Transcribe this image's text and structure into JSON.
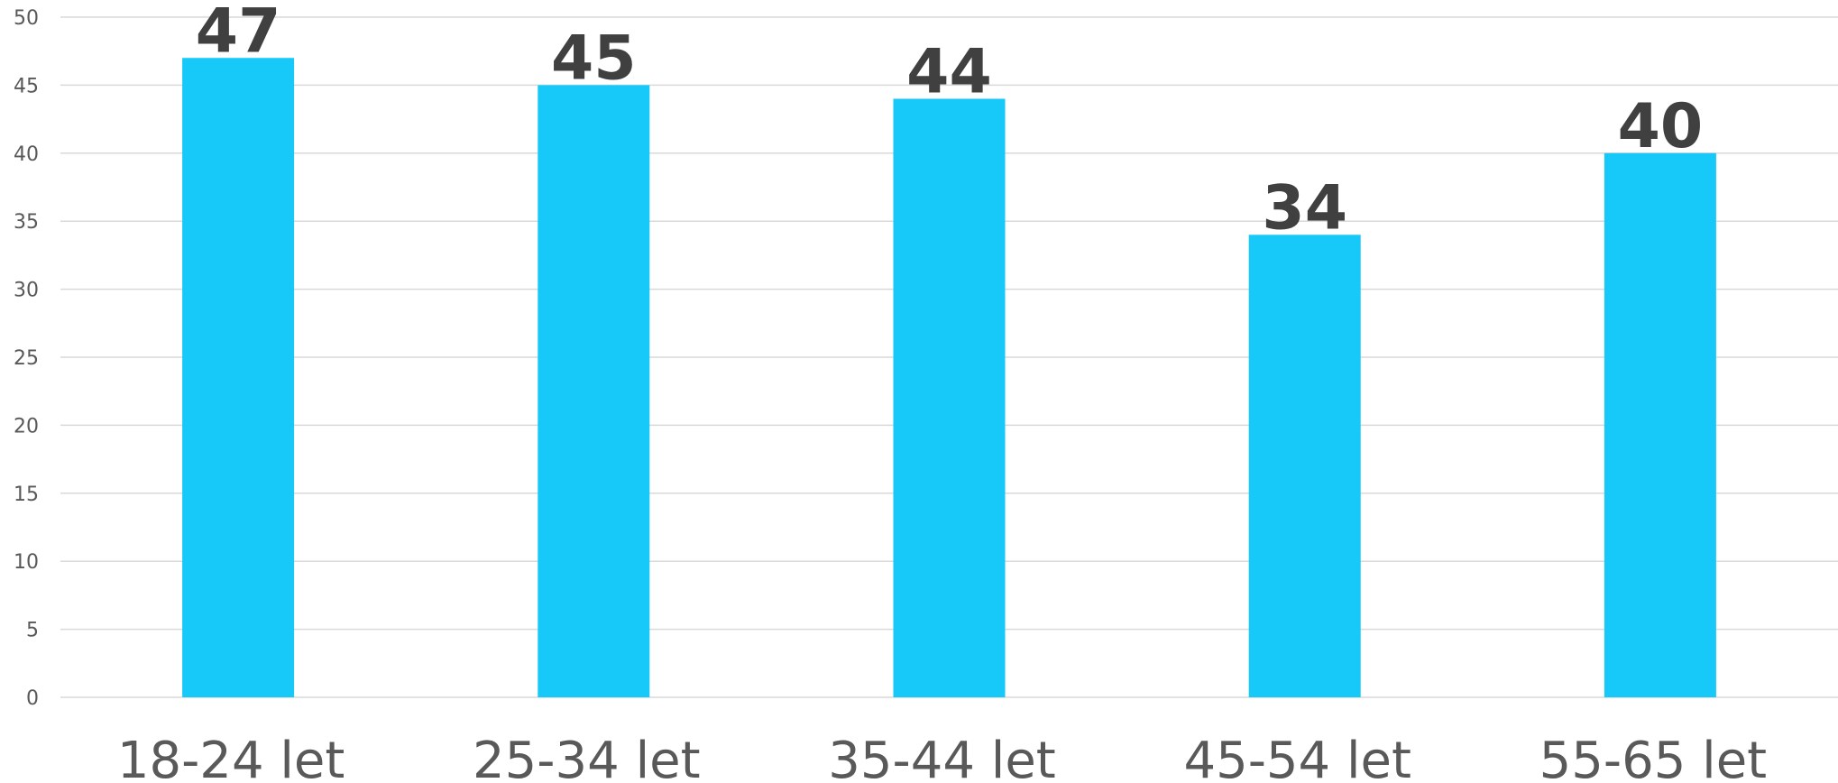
{
  "chart_data": {
    "type": "bar",
    "title": "",
    "xlabel": "",
    "ylabel": "",
    "categories": [
      "18-24 let",
      "25-34 let",
      "35-44 let",
      "45-54 let",
      "55-65 let"
    ],
    "values": [
      47,
      45,
      44,
      34,
      40
    ],
    "data_labels": [
      "47",
      "45",
      "44",
      "34",
      "40"
    ],
    "ylim": [
      0,
      50
    ],
    "yticks": [
      0,
      5,
      10,
      15,
      20,
      25,
      30,
      35,
      40,
      45,
      50
    ],
    "grid": true,
    "legend": "none",
    "bar_color": "#17c9f8"
  }
}
